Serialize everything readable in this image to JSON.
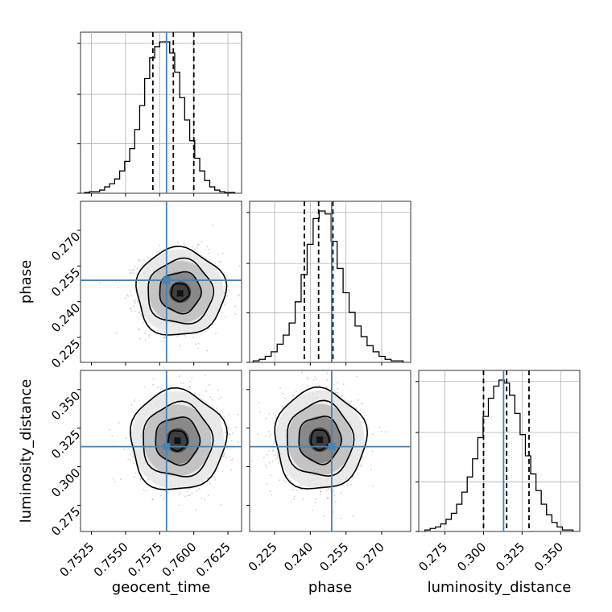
{
  "chart_data": {
    "type": "corner",
    "parameters": [
      "geocent_time",
      "phase",
      "luminosity_distance"
    ],
    "axis_labels": {
      "geocent_time": "geocent_time",
      "phase": "phase",
      "luminosity_distance": "luminosity_distance"
    },
    "ranges": {
      "geocent_time": [
        0.7517,
        0.7635
      ],
      "phase": [
        0.2145,
        0.2822
      ],
      "luminosity_distance": [
        0.258,
        0.3624
      ]
    },
    "ticks": {
      "geocent_time": [
        "0.7525",
        "0.7550",
        "0.7575",
        "0.7600",
        "0.7625"
      ],
      "phase": [
        "0.225",
        "0.240",
        "0.255",
        "0.270"
      ],
      "luminosity_distance": [
        "0.275",
        "0.300",
        "0.325",
        "0.350"
      ]
    },
    "truths": {
      "geocent_time": 0.758,
      "phase": 0.249,
      "luminosity_distance": 0.313
    },
    "quantiles": {
      "geocent_time": [
        0.757,
        0.7585,
        0.76
      ],
      "phase": [
        0.2375,
        0.2435,
        0.2495
      ],
      "luminosity_distance": [
        0.3,
        0.315,
        0.3295
      ]
    },
    "histograms": {
      "geocent_time": {
        "edges_range": [
          0.752,
          0.763
        ],
        "counts": [
          0.5,
          1,
          1,
          2,
          4,
          6,
          9,
          14,
          20,
          28,
          40,
          55,
          72,
          85,
          92,
          95,
          95,
          88,
          76,
          60,
          46,
          33,
          22,
          14,
          8,
          4,
          2,
          1,
          0.5,
          0.5
        ]
      },
      "phase": {
        "edges_range": [
          0.216,
          0.279
        ],
        "counts": [
          1,
          2,
          4,
          7,
          12,
          18,
          26,
          40,
          58,
          78,
          95,
          100,
          98,
          80,
          62,
          46,
          33,
          24,
          17,
          11,
          7,
          4,
          2,
          1,
          1
        ]
      },
      "luminosity_distance": {
        "edges_range": [
          0.262,
          0.358
        ],
        "counts": [
          1,
          2,
          3,
          5,
          8,
          12,
          18,
          26,
          36,
          48,
          62,
          76,
          88,
          96,
          100,
          98,
          90,
          78,
          64,
          50,
          38,
          27,
          18,
          11,
          6,
          3,
          1,
          1
        ]
      }
    },
    "pairs": [
      {
        "x": "geocent_time",
        "y": "phase",
        "mean": [
          0.759,
          0.244
        ],
        "sigma": [
          0.00145,
          0.0082
        ],
        "peak": [
          0.759,
          0.2435
        ]
      },
      {
        "x": "geocent_time",
        "y": "luminosity_distance",
        "mean": [
          0.7588,
          0.317
        ],
        "sigma": [
          0.00155,
          0.0145
        ],
        "peak": [
          0.7588,
          0.3168
        ]
      },
      {
        "x": "phase",
        "y": "luminosity_distance",
        "mean": [
          0.244,
          0.3175
        ],
        "sigma": [
          0.0085,
          0.0145
        ],
        "peak": [
          0.244,
          0.3175
        ]
      }
    ],
    "colors": {
      "truth": "#4682b4",
      "hist": "#000000",
      "grid": "#b0b0b0",
      "density": "#000000",
      "scatter": "#777777"
    },
    "grid": true
  }
}
